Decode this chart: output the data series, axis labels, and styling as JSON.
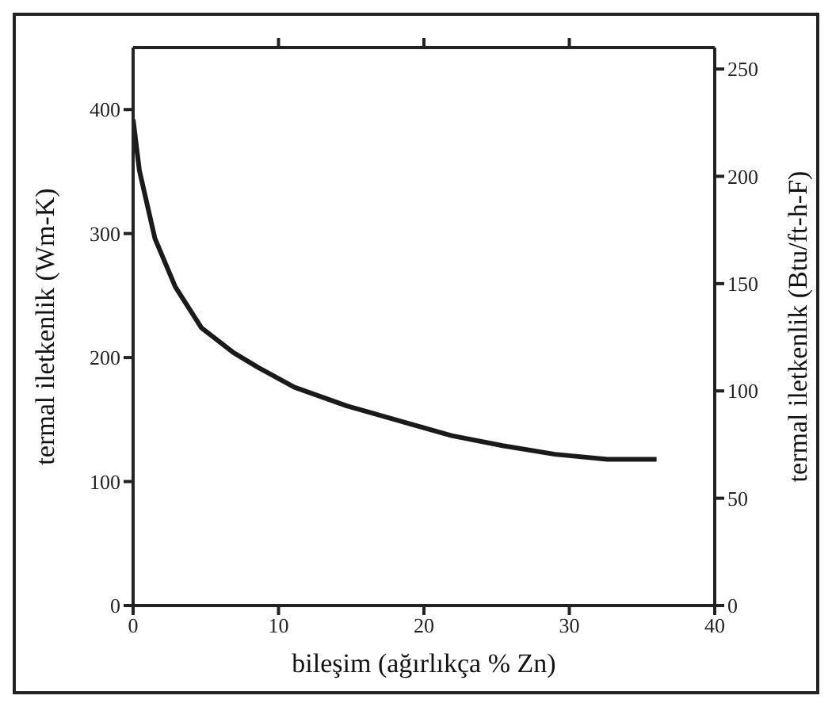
{
  "chart_data": {
    "type": "line",
    "xlabel": "bileşim (ağırlıkça % Zn)",
    "ylabel": "termal iletkenlik (Wm-K)",
    "y2label": "termal iletkenlik (Btu/ft-h-F)",
    "x": [
      0,
      0.43,
      1.5,
      2.9,
      4.7,
      6.9,
      8.6,
      11.1,
      14.7,
      18.3,
      21.9,
      25.4,
      29,
      32.6,
      36
    ],
    "series": [
      {
        "color": "#1a1a1a",
        "values": [
          392,
          351,
          296,
          257,
          224,
          204,
          192,
          176,
          161,
          149,
          137,
          129,
          122,
          118,
          118
        ]
      }
    ],
    "xlim": [
      0,
      40
    ],
    "xticks": [
      0,
      10,
      20,
      30,
      40
    ],
    "ylim": [
      0,
      450
    ],
    "yticks": [
      0,
      100,
      200,
      300,
      400
    ],
    "y2lim": [
      0,
      260
    ],
    "y2ticks": [
      0,
      50,
      100,
      150,
      200,
      250
    ],
    "grid": false,
    "legend": false,
    "marker": "none",
    "line_style": "solid"
  }
}
